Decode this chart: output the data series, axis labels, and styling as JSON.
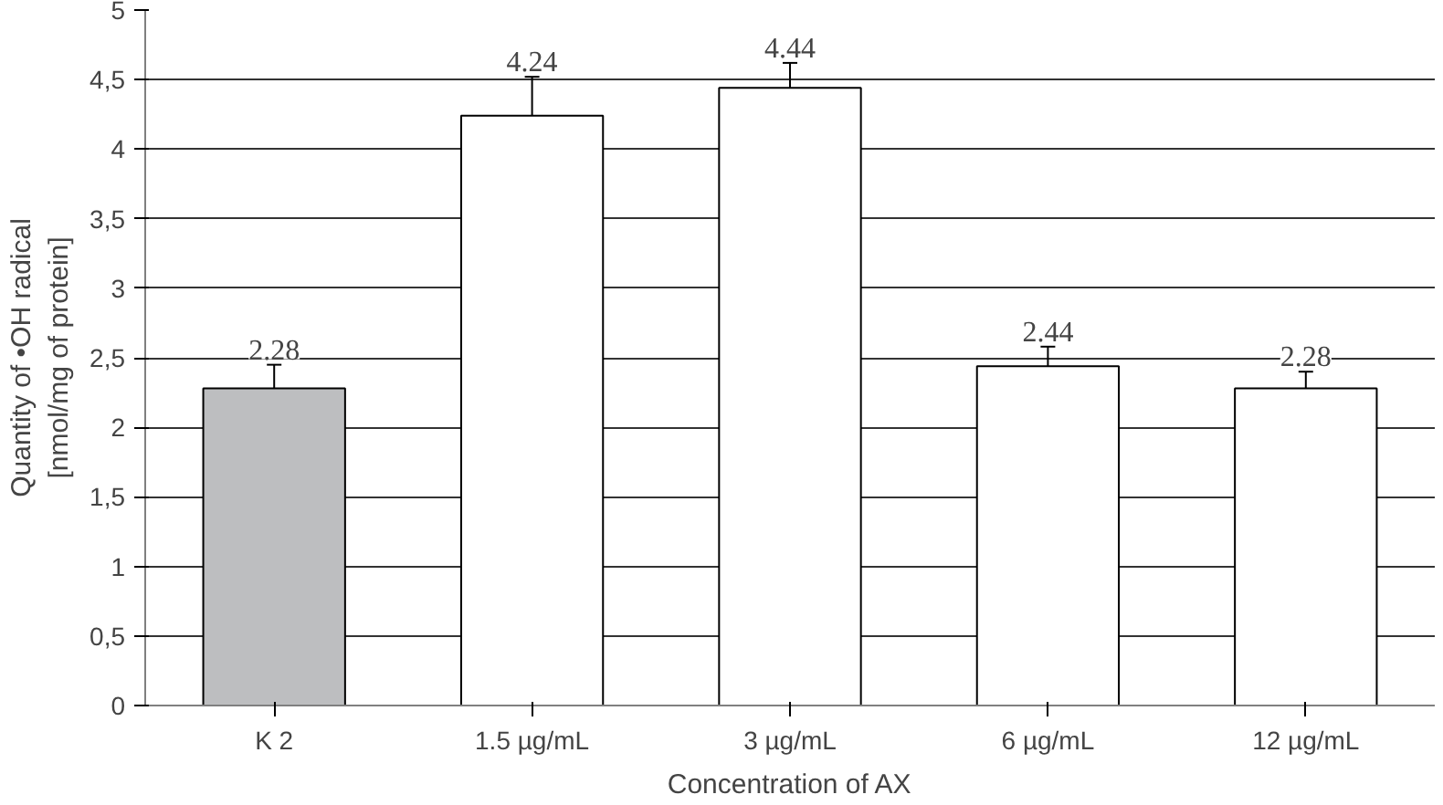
{
  "chart_data": {
    "type": "bar",
    "xlabel": "Concentration of AX",
    "ylabel": "Quantity of •OH radical\n[nmol/mg of protein]",
    "categories": [
      "K 2",
      "1.5 µg/mL",
      "3 µg/mL",
      "6 µg/mL",
      "12 µg/mL"
    ],
    "values": [
      2.28,
      4.24,
      4.44,
      2.44,
      2.28
    ],
    "errors": [
      0.17,
      0.28,
      0.18,
      0.14,
      0.12
    ],
    "colors": [
      "#bdbec0",
      "#ffffff",
      "#ffffff",
      "#ffffff",
      "#ffffff"
    ],
    "data_labels": true,
    "ylim": [
      0,
      5
    ],
    "yticks": [
      0,
      {
        "value": 0.5,
        "label": "0,5"
      },
      1,
      {
        "value": 1.5,
        "label": "1,5"
      },
      2,
      {
        "value": 2.5,
        "label": "2,5"
      },
      3,
      {
        "value": 3.5,
        "label": "3,5"
      },
      4,
      {
        "value": 4.5,
        "label": "4,5"
      },
      5
    ],
    "grid": "y"
  }
}
